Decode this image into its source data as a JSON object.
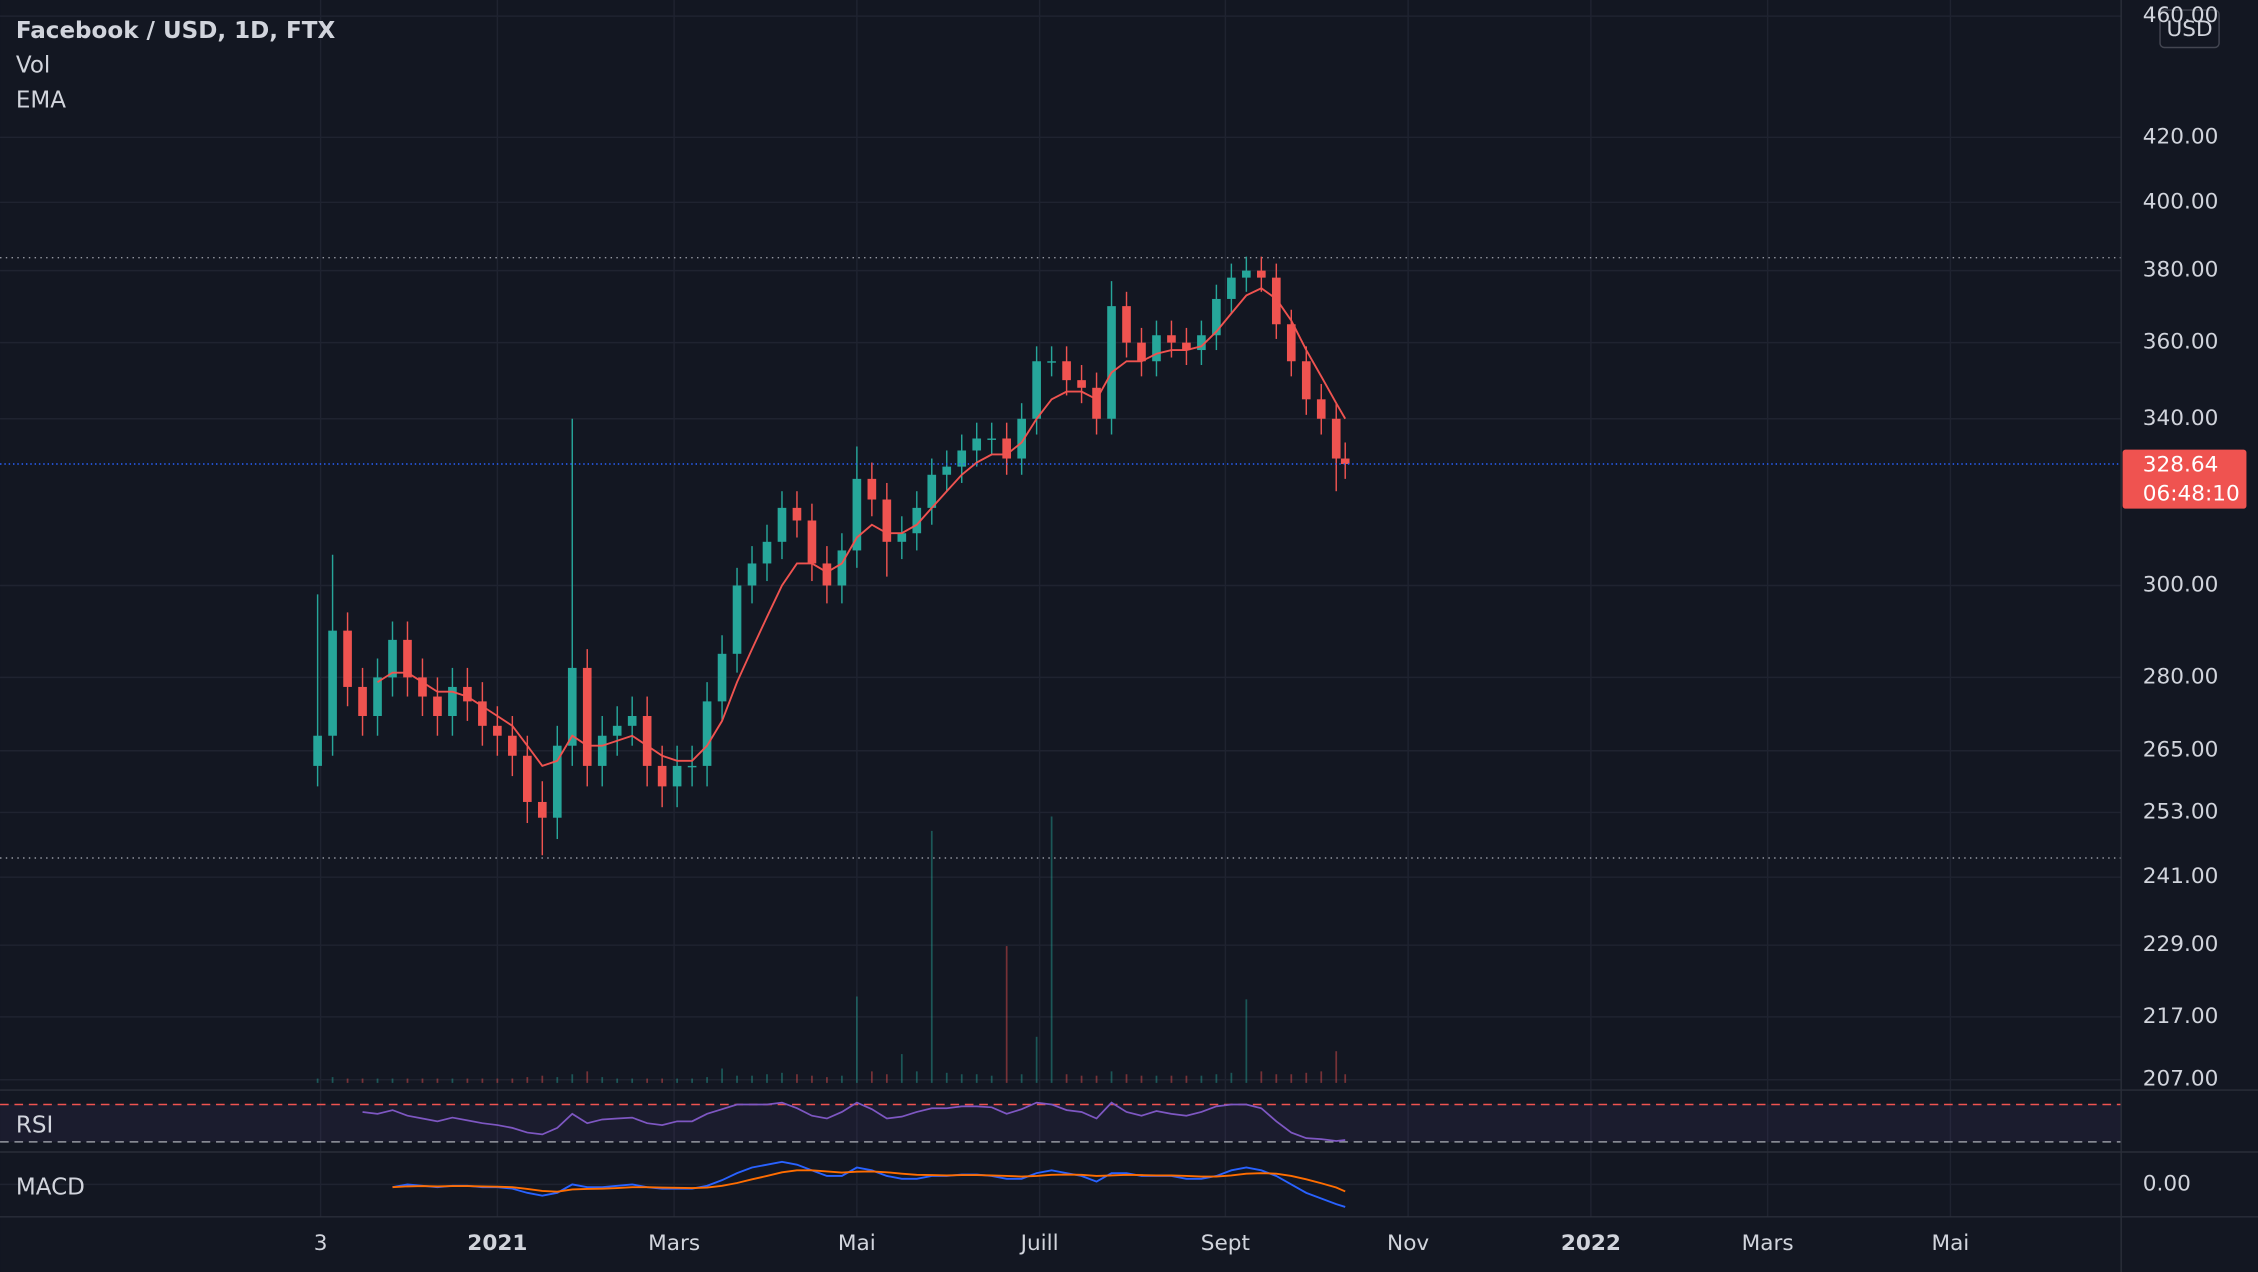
{
  "chart_data": {
    "type": "candlestick",
    "title": "Facebook / USD, 1D, FTX",
    "currency": "USD",
    "log_scale": true,
    "grid": true,
    "up_color": "#26a69a",
    "down_color": "#ef5350",
    "x": [
      -60,
      -55,
      -50,
      -45,
      -40,
      -35,
      -30,
      -25,
      -20,
      -15,
      -10,
      -5,
      0,
      5,
      10,
      15,
      20,
      25,
      30,
      35,
      40,
      45,
      50,
      55,
      60,
      65,
      70,
      75,
      80,
      85,
      90,
      95,
      100,
      105,
      110,
      115,
      120,
      125,
      130,
      135,
      140,
      145,
      150,
      155,
      160,
      165,
      170,
      175,
      180,
      185,
      190,
      195,
      200,
      205,
      210,
      215,
      220,
      225,
      230,
      235,
      240,
      245,
      250,
      255,
      260,
      265,
      270,
      275,
      280,
      283
    ],
    "open": [
      262,
      268,
      290,
      278,
      272,
      280,
      288,
      280,
      276,
      272,
      278,
      275,
      270,
      268,
      264,
      255,
      252,
      266,
      282,
      262,
      268,
      270,
      272,
      262,
      258,
      262,
      262,
      275,
      285,
      300,
      305,
      310,
      318,
      315,
      305,
      300,
      308,
      325,
      320,
      310,
      312,
      318,
      326,
      328,
      332,
      335,
      335,
      330,
      340,
      355,
      355,
      350,
      348,
      340,
      370,
      360,
      355,
      362,
      360,
      358,
      362,
      372,
      378,
      380,
      378,
      365,
      355,
      345,
      340,
      330
    ],
    "high": [
      298,
      307,
      294,
      282,
      284,
      292,
      292,
      284,
      280,
      282,
      282,
      279,
      274,
      272,
      268,
      259,
      270,
      340,
      286,
      272,
      274,
      276,
      276,
      266,
      266,
      266,
      279,
      289,
      304,
      309,
      314,
      322,
      322,
      319,
      309,
      312,
      333,
      329,
      324,
      316,
      322,
      330,
      332,
      336,
      339,
      339,
      339,
      344,
      359,
      359,
      359,
      354,
      352,
      377,
      374,
      364,
      366,
      366,
      364,
      366,
      376,
      382,
      384,
      384,
      382,
      369,
      359,
      349,
      344,
      334
    ],
    "low": [
      258,
      264,
      274,
      268,
      268,
      276,
      276,
      272,
      268,
      268,
      271,
      266,
      264,
      260,
      251,
      245,
      248,
      262,
      258,
      258,
      264,
      266,
      258,
      254,
      254,
      258,
      258,
      271,
      281,
      296,
      301,
      306,
      311,
      301,
      296,
      296,
      304,
      316,
      302,
      306,
      308,
      314,
      322,
      324,
      328,
      331,
      326,
      326,
      336,
      351,
      346,
      344,
      336,
      336,
      356,
      351,
      351,
      356,
      354,
      354,
      358,
      368,
      374,
      374,
      361,
      351,
      341,
      336,
      322,
      325
    ],
    "close": [
      268,
      290,
      278,
      272,
      280,
      288,
      280,
      276,
      272,
      278,
      275,
      270,
      268,
      264,
      255,
      252,
      266,
      282,
      262,
      268,
      270,
      272,
      262,
      258,
      262,
      262,
      275,
      285,
      300,
      305,
      310,
      318,
      315,
      305,
      300,
      308,
      325,
      320,
      310,
      312,
      318,
      326,
      328,
      332,
      335,
      335,
      330,
      340,
      355,
      355,
      350,
      348,
      340,
      370,
      360,
      355,
      362,
      360,
      358,
      362,
      372,
      378,
      380,
      378,
      365,
      355,
      345,
      340,
      330,
      328.64
    ],
    "xlim": [
      -166,
      542
    ],
    "xticks": [
      {
        "value": -59,
        "label": "3"
      },
      {
        "value": 0,
        "label": "2021"
      },
      {
        "value": 59,
        "label": "Mars"
      },
      {
        "value": 120,
        "label": "Mai"
      },
      {
        "value": 181,
        "label": "Juill"
      },
      {
        "value": 243,
        "label": "Sept"
      },
      {
        "value": 304,
        "label": "Nov"
      },
      {
        "value": 365,
        "label": "2022"
      },
      {
        "value": 424,
        "label": "Mars"
      },
      {
        "value": 485,
        "label": "Mai"
      }
    ],
    "ylim": [
      205.4,
      465.6
    ],
    "yticks": [
      {
        "value": 460,
        "label": "460.00"
      },
      {
        "value": 420,
        "label": "420.00"
      },
      {
        "value": 400,
        "label": "400.00"
      },
      {
        "value": 380,
        "label": "380.00"
      },
      {
        "value": 360,
        "label": "360.00"
      },
      {
        "value": 340,
        "label": "340.00"
      },
      {
        "value": 300,
        "label": "300.00"
      },
      {
        "value": 280,
        "label": "280.00"
      },
      {
        "value": 265,
        "label": "265.00"
      },
      {
        "value": 253,
        "label": "253.00"
      },
      {
        "value": 241,
        "label": "241.00"
      },
      {
        "value": 229,
        "label": "229.00"
      },
      {
        "value": 217,
        "label": "217.00"
      },
      {
        "value": 207,
        "label": "207.00"
      }
    ],
    "last_price": 328.64,
    "countdown": "06:48:10",
    "range_lines": [
      383.7,
      244.5
    ],
    "volume": {
      "name": "Vol",
      "values": [
        3,
        4,
        3,
        3,
        3,
        3,
        3,
        3,
        3,
        3,
        3,
        3,
        3,
        3,
        4,
        5,
        4,
        6,
        8,
        4,
        3,
        3,
        3,
        3,
        3,
        3,
        4,
        10,
        5,
        5,
        6,
        7,
        6,
        5,
        4,
        5,
        60,
        8,
        6,
        20,
        8,
        175,
        7,
        6,
        6,
        5,
        95,
        6,
        32,
        185,
        6,
        5,
        5,
        8,
        6,
        5,
        5,
        5,
        5,
        5,
        6,
        7,
        58,
        8,
        6,
        6,
        7,
        8,
        22,
        6
      ]
    },
    "ema": {
      "name": "EMA",
      "color": "#ef5350",
      "values": [
        null,
        null,
        null,
        null,
        279,
        281,
        281,
        279,
        277,
        277,
        276,
        274,
        272,
        270,
        266,
        262,
        263,
        268,
        266,
        266,
        267,
        268,
        266,
        264,
        263,
        263,
        266,
        271,
        279,
        286,
        293,
        300,
        305,
        305,
        303,
        305,
        311,
        314,
        312,
        312,
        314,
        318,
        322,
        326,
        329,
        331,
        331,
        334,
        340,
        345,
        347,
        347,
        345,
        352,
        355,
        355,
        357,
        358,
        358,
        359,
        363,
        368,
        373,
        375,
        372,
        366,
        358,
        351,
        344,
        340
      ]
    },
    "rsi": {
      "name": "RSI",
      "color": "#7e57c2",
      "ylim": [
        19.2,
        85.4
      ],
      "bands": [
        70,
        30
      ],
      "values": [
        null,
        null,
        null,
        62,
        60,
        64,
        58,
        55,
        52,
        56,
        53,
        50,
        48,
        45,
        40,
        38,
        45,
        60,
        50,
        54,
        55,
        56,
        50,
        48,
        52,
        52,
        60,
        65,
        70,
        70,
        70,
        72,
        66,
        58,
        55,
        62,
        72,
        65,
        55,
        57,
        62,
        66,
        66,
        68,
        68,
        67,
        60,
        65,
        72,
        70,
        64,
        62,
        55,
        72,
        62,
        58,
        63,
        60,
        58,
        62,
        68,
        70,
        70,
        66,
        52,
        40,
        34,
        33,
        31,
        32
      ]
    },
    "macd": {
      "name": "MACD",
      "ylim": [
        -11.5,
        11.5
      ],
      "yticks": [
        {
          "value": 0,
          "label": "0.00"
        }
      ],
      "series": [
        {
          "color": "#2962ff",
          "values": [
            null,
            null,
            null,
            null,
            null,
            -1,
            0,
            -0.5,
            -1,
            -0.5,
            -0.5,
            -1,
            -1,
            -1.5,
            -3,
            -4,
            -3,
            0,
            -1,
            -1,
            -0.5,
            0,
            -1,
            -1.5,
            -1.5,
            -1.5,
            -0.5,
            1.5,
            4,
            6,
            7,
            8,
            7,
            5,
            3,
            3,
            6,
            5,
            3,
            2,
            2,
            3,
            3,
            3.5,
            3.5,
            3,
            2,
            2,
            4,
            5,
            4,
            3,
            1,
            4,
            4,
            3,
            3,
            3,
            2,
            2,
            3,
            5,
            6,
            5,
            3,
            0,
            -3,
            -5,
            -7,
            -8
          ]
        },
        {
          "color": "#ff6d00",
          "values": [
            null,
            null,
            null,
            null,
            null,
            -1,
            -0.7,
            -0.6,
            -0.7,
            -0.6,
            -0.6,
            -0.7,
            -0.8,
            -1,
            -1.6,
            -2.3,
            -2.6,
            -1.8,
            -1.6,
            -1.5,
            -1.3,
            -1,
            -1,
            -1.1,
            -1.2,
            -1.3,
            -1.1,
            -0.5,
            0.5,
            1.8,
            3,
            4.3,
            5,
            5,
            4.6,
            4.2,
            4.5,
            4.6,
            4.3,
            3.8,
            3.4,
            3.3,
            3.2,
            3.3,
            3.3,
            3.2,
            3,
            2.8,
            3,
            3.4,
            3.5,
            3.4,
            3,
            3.2,
            3.4,
            3.3,
            3.2,
            3.2,
            3,
            2.8,
            2.8,
            3.2,
            3.8,
            4,
            3.8,
            3,
            1.8,
            0.4,
            -1.1,
            -2.5
          ]
        }
      ]
    }
  }
}
